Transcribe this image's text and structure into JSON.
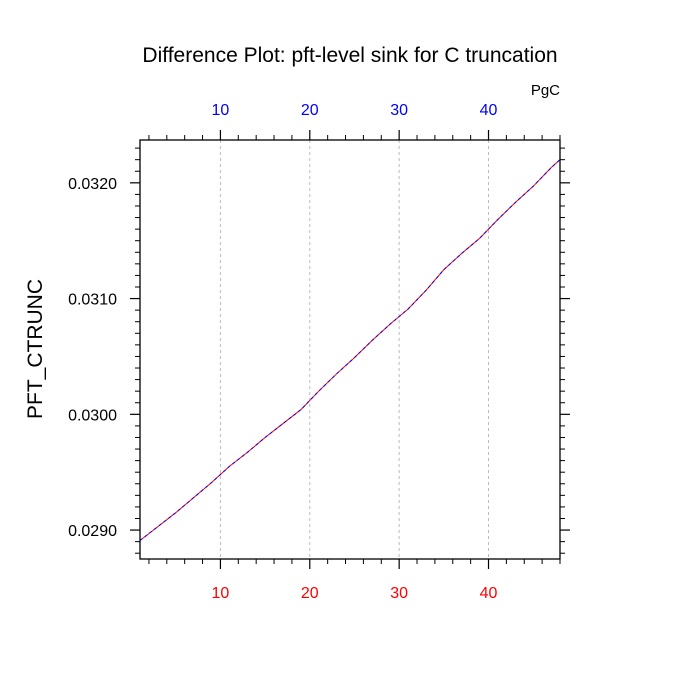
{
  "chart_data": {
    "type": "line",
    "title": "Difference Plot: pft-level sink for C truncation",
    "xlabel": "",
    "ylabel": "PFT_CTRUNC",
    "units_label": "PgC",
    "xlim": [
      1,
      48
    ],
    "ylim": [
      0.02875,
      0.03237
    ],
    "x_ticks": [
      10,
      20,
      30,
      40
    ],
    "x_tick_labels": [
      "10",
      "20",
      "30",
      "40"
    ],
    "y_ticks": [
      0.029,
      0.03,
      0.031,
      0.032
    ],
    "y_tick_labels": [
      "0.0290",
      "0.0300",
      "0.0310",
      "0.0320"
    ],
    "grid": "vertical dashed at x ticks",
    "colors": {
      "bottom_ticks": "#ff0000",
      "top_ticks": "#0000ff",
      "series_a": "#ff0000",
      "series_b": "#0000ff"
    },
    "series": [
      {
        "color": "#ff0000",
        "dashed": false,
        "x": [
          1,
          3,
          5,
          7,
          9,
          11,
          13,
          15,
          17,
          19,
          21,
          23,
          25,
          27,
          29,
          31,
          33,
          35,
          37,
          39,
          41,
          43,
          45,
          47,
          48
        ],
        "y": [
          0.02891,
          0.02903,
          0.02915,
          0.02928,
          0.02941,
          0.02955,
          0.02967,
          0.0298,
          0.02992,
          0.03004,
          0.0302,
          0.03035,
          0.03049,
          0.03064,
          0.03078,
          0.03091,
          0.03107,
          0.03125,
          0.03139,
          0.03152,
          0.03168,
          0.03183,
          0.03197,
          0.03213,
          0.0322
        ]
      },
      {
        "color": "#0000ff",
        "dashed": true,
        "x": [
          1,
          3,
          5,
          7,
          9,
          11,
          13,
          15,
          17,
          19,
          21,
          23,
          25,
          27,
          29,
          31,
          33,
          35,
          37,
          39,
          41,
          43,
          45,
          47,
          48
        ],
        "y": [
          0.02891,
          0.02903,
          0.02915,
          0.02928,
          0.02941,
          0.02955,
          0.02967,
          0.0298,
          0.02992,
          0.03004,
          0.0302,
          0.03035,
          0.03049,
          0.03064,
          0.03078,
          0.03091,
          0.03107,
          0.03125,
          0.03139,
          0.03152,
          0.03168,
          0.03183,
          0.03197,
          0.03213,
          0.0322
        ]
      }
    ]
  }
}
